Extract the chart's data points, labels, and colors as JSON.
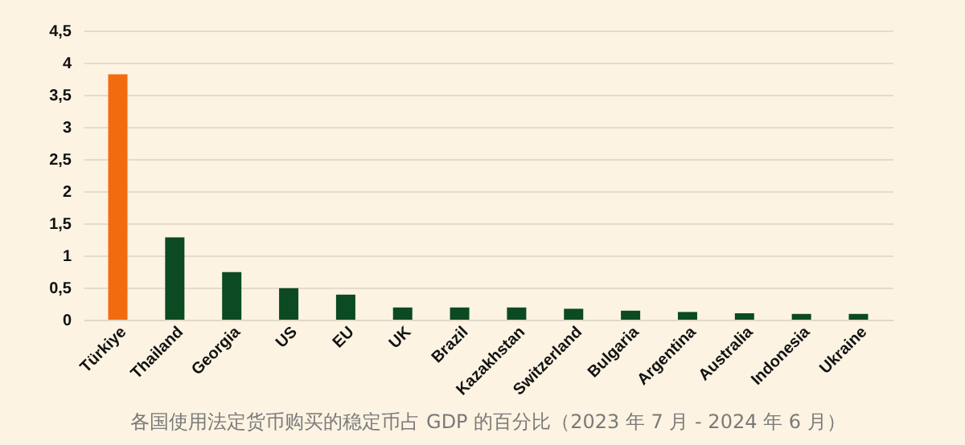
{
  "chart_data": {
    "type": "bar",
    "categories": [
      "Türkiye",
      "Thailand",
      "Georgia",
      "US",
      "EU",
      "UK",
      "Brazil",
      "Kazakhstan",
      "Switzerland",
      "Bulgaria",
      "Argentina",
      "Australia",
      "Indonesia",
      "Ukraine"
    ],
    "values": [
      3.82,
      1.28,
      0.74,
      0.49,
      0.39,
      0.19,
      0.19,
      0.19,
      0.17,
      0.14,
      0.12,
      0.1,
      0.09,
      0.09
    ],
    "colors": [
      "#f26b10",
      "#0b4a22",
      "#0b4a22",
      "#0b4a22",
      "#0b4a22",
      "#0b4a22",
      "#0b4a22",
      "#0b4a22",
      "#0b4a22",
      "#0b4a22",
      "#0b4a22",
      "#0b4a22",
      "#0b4a22",
      "#0b4a22"
    ],
    "ylim": [
      0,
      4.5
    ],
    "yticks": [
      0,
      {
        "value": 0.5,
        "label": "0,5"
      },
      1,
      {
        "value": 1.5,
        "label": "1,5"
      },
      2,
      {
        "value": 2.5,
        "label": "2,5"
      },
      3,
      {
        "value": 3.5,
        "label": "3,5"
      },
      4,
      {
        "value": 4.5,
        "label": "4,5"
      }
    ],
    "grid": "y",
    "annotations": [
      "各国使用法定货币购买的稳定币占 GDP 的百分比（2023 年 7 月 - 2024 年 6 月）"
    ]
  }
}
